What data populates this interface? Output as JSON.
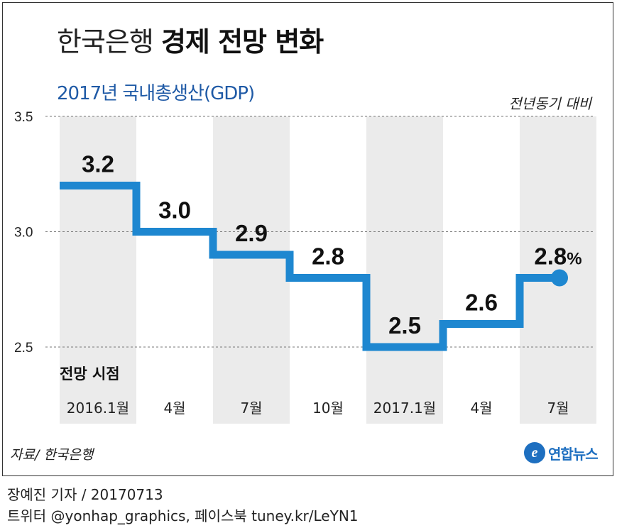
{
  "header": {
    "title_light": "한국은행",
    "title_bold": "경제 전망 변화",
    "subtitle": "2017년 국내총생산(GDP)",
    "unit_note": "전년동기 대비"
  },
  "chart_data": {
    "type": "line",
    "step": true,
    "title": "2017년 국내총생산(GDP)",
    "ylim": [
      2.5,
      3.5
    ],
    "yticks": [
      "3.5",
      "3.0",
      "2.5"
    ],
    "x_header": "전망 시점",
    "categories": [
      "2016.1월",
      "4월",
      "7월",
      "10월",
      "2017.1월",
      "4월",
      "7월"
    ],
    "values": [
      3.2,
      3.0,
      2.9,
      2.8,
      2.5,
      2.6,
      2.8
    ],
    "value_labels": [
      "3.2",
      "3.0",
      "2.9",
      "2.8",
      "2.5",
      "2.6",
      "2.8"
    ],
    "last_unit": "%",
    "line_color": "#1e87d0",
    "band_color": "#ebebeb",
    "grid": "dashed"
  },
  "footer": {
    "source": "자료/ 한국은행",
    "logo_mark": "e",
    "logo_name": "연합뉴스",
    "credit_line1": "장예진 기자 / 20170713",
    "credit_line2": "트위터 @yonhap_graphics, 페이스북 tuney.kr/LeYN1"
  }
}
